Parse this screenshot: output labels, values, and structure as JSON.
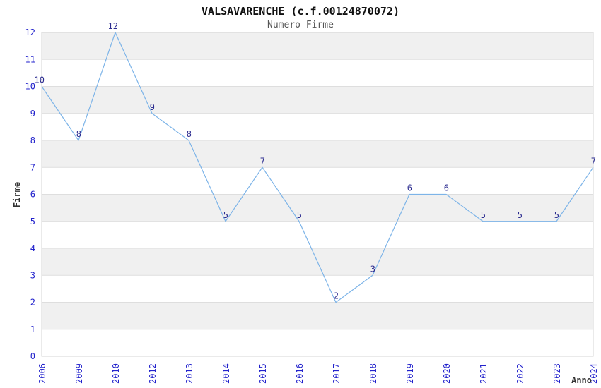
{
  "chart_data": {
    "type": "line",
    "title": "VALSAVARENCHE (c.f.00124870072)",
    "subtitle": "Numero Firme",
    "xlabel": "Anno",
    "ylabel": "Firme",
    "categories": [
      "2006",
      "2009",
      "2010",
      "2012",
      "2013",
      "2014",
      "2015",
      "2016",
      "2017",
      "2018",
      "2019",
      "2020",
      "2021",
      "2022",
      "2023",
      "2024"
    ],
    "values": [
      10,
      8,
      12,
      9,
      8,
      5,
      7,
      5,
      2,
      3,
      6,
      6,
      5,
      5,
      5,
      7
    ],
    "ylim": [
      0,
      12
    ],
    "yticks": [
      0,
      1,
      2,
      3,
      4,
      5,
      6,
      7,
      8,
      9,
      10,
      11,
      12
    ],
    "grid": "horizontal gridlines with alternating gray unit bands (odd bands shaded)",
    "legend": "none",
    "point_labels": true,
    "x_tick_rotation": -90,
    "colors": {
      "line": "#7db4e8",
      "tick_label": "#2222cc",
      "point_label": "#2b2b8f",
      "band": "#f0f0f0",
      "grid": "#dedede",
      "border": "#d4d4d4",
      "title": "#111111",
      "subtitle": "#555555",
      "axis_title": "#333333",
      "background": "#ffffff"
    }
  }
}
